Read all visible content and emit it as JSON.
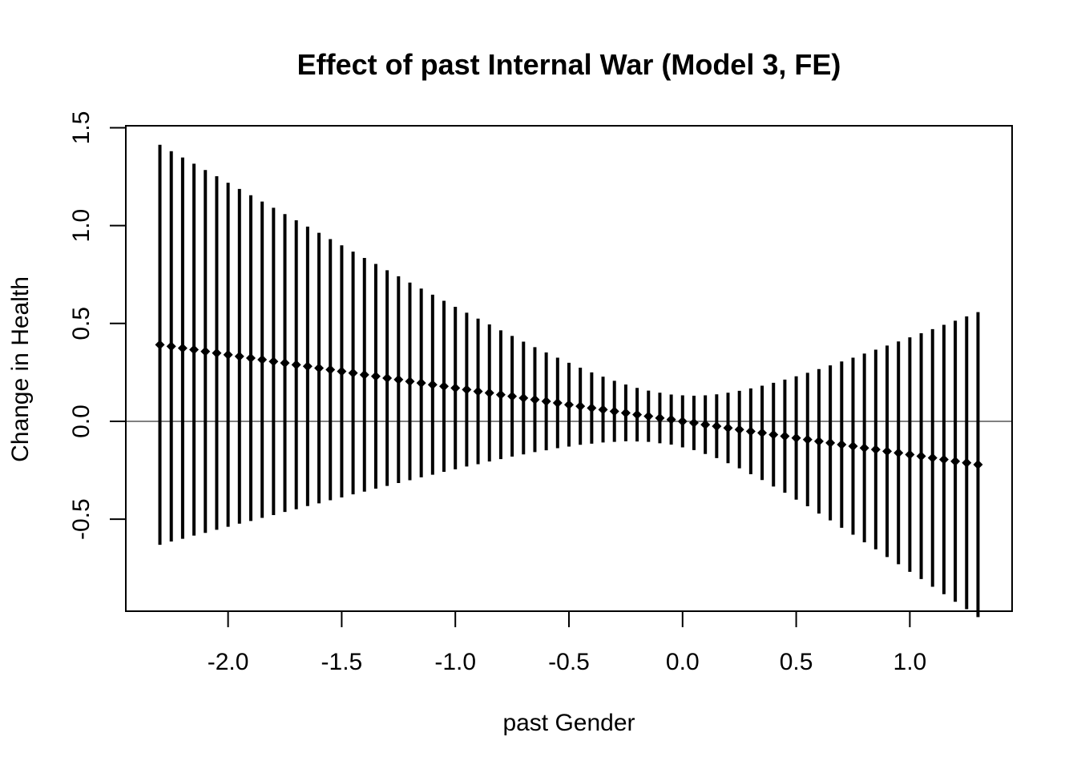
{
  "chart_data": {
    "type": "scatter",
    "title": "Effect of past Internal War (Model 3, FE)",
    "xlabel": "past Gender",
    "ylabel": "Change in Health",
    "xlim": [
      -2.45,
      1.45
    ],
    "ylim": [
      -0.97,
      1.51
    ],
    "x_ticks": [
      -2.0,
      -1.5,
      -1.0,
      -0.5,
      0.0,
      0.5,
      1.0
    ],
    "x_tick_labels": [
      "-2.0",
      "-1.5",
      "-1.0",
      "-0.5",
      "0.0",
      "0.5",
      "1.0"
    ],
    "y_ticks": [
      -0.5,
      0.0,
      0.5,
      1.0,
      1.5
    ],
    "y_tick_labels": [
      "-0.5",
      "0.0",
      "0.5",
      "1.0",
      "1.5"
    ],
    "reference_line_y": 0,
    "grid": false,
    "legend": "none",
    "x_start": -2.3,
    "x_step": 0.05,
    "point_estimates": [
      0.391,
      0.383,
      0.374,
      0.366,
      0.357,
      0.349,
      0.34,
      0.332,
      0.323,
      0.315,
      0.306,
      0.298,
      0.289,
      0.281,
      0.272,
      0.264,
      0.255,
      0.247,
      0.238,
      0.23,
      0.221,
      0.213,
      0.204,
      0.196,
      0.187,
      0.179,
      0.17,
      0.162,
      0.153,
      0.145,
      0.136,
      0.128,
      0.119,
      0.111,
      0.102,
      0.094,
      0.085,
      0.077,
      0.068,
      0.06,
      0.051,
      0.043,
      0.034,
      0.026,
      0.017,
      0.009,
      0.0,
      -0.008,
      -0.017,
      -0.025,
      -0.034,
      -0.042,
      -0.051,
      -0.059,
      -0.068,
      -0.076,
      -0.085,
      -0.093,
      -0.102,
      -0.11,
      -0.119,
      -0.127,
      -0.136,
      -0.144,
      -0.153,
      -0.161,
      -0.17,
      -0.178,
      -0.187,
      -0.195,
      -0.204,
      -0.212,
      -0.221
    ],
    "ci_upper": [
      1.413,
      1.38,
      1.348,
      1.316,
      1.284,
      1.252,
      1.219,
      1.187,
      1.155,
      1.123,
      1.091,
      1.059,
      1.027,
      0.995,
      0.963,
      0.931,
      0.899,
      0.867,
      0.835,
      0.804,
      0.772,
      0.741,
      0.709,
      0.678,
      0.647,
      0.616,
      0.585,
      0.555,
      0.525,
      0.495,
      0.465,
      0.436,
      0.407,
      0.379,
      0.352,
      0.325,
      0.299,
      0.274,
      0.25,
      0.228,
      0.207,
      0.188,
      0.171,
      0.157,
      0.146,
      0.137,
      0.133,
      0.131,
      0.133,
      0.138,
      0.146,
      0.156,
      0.168,
      0.182,
      0.197,
      0.213,
      0.23,
      0.248,
      0.267,
      0.286,
      0.306,
      0.325,
      0.346,
      0.366,
      0.387,
      0.408,
      0.429,
      0.45,
      0.471,
      0.493,
      0.514,
      0.536,
      0.558
    ],
    "ci_lower": [
      -0.631,
      -0.614,
      -0.6,
      -0.584,
      -0.57,
      -0.554,
      -0.539,
      -0.523,
      -0.509,
      -0.493,
      -0.479,
      -0.463,
      -0.449,
      -0.433,
      -0.419,
      -0.403,
      -0.389,
      -0.373,
      -0.359,
      -0.344,
      -0.33,
      -0.315,
      -0.301,
      -0.286,
      -0.273,
      -0.258,
      -0.245,
      -0.231,
      -0.219,
      -0.205,
      -0.193,
      -0.18,
      -0.169,
      -0.157,
      -0.148,
      -0.137,
      -0.129,
      -0.12,
      -0.114,
      -0.108,
      -0.105,
      -0.102,
      -0.103,
      -0.105,
      -0.112,
      -0.119,
      -0.133,
      -0.147,
      -0.167,
      -0.188,
      -0.214,
      -0.24,
      -0.27,
      -0.3,
      -0.333,
      -0.365,
      -0.4,
      -0.434,
      -0.471,
      -0.506,
      -0.544,
      -0.579,
      -0.618,
      -0.654,
      -0.693,
      -0.73,
      -0.769,
      -0.806,
      -0.845,
      -0.883,
      -0.922,
      -0.96,
      -1.0
    ]
  }
}
